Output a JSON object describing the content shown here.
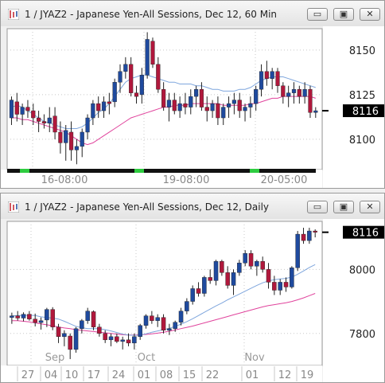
{
  "windows": [
    {
      "title": "1 / JYAZ2 - Japanese Yen-All Sessions, Dec 12, 60 Min",
      "buttons": {
        "minimize": "▭",
        "restore": "▣",
        "close": "✕"
      },
      "price_label": "8116",
      "colors": {
        "up": "#1f4a9e",
        "down": "#b0183c",
        "ma_short": "#7fa6dd",
        "ma_long": "#e0439c",
        "session_bar": "#111111",
        "session_mark": "#2ecc40"
      }
    },
    {
      "title": "1 / JYAZ2 - Japanese Yen-All Sessions, Dec 12, Daily",
      "buttons": {
        "minimize": "▭",
        "restore": "▣",
        "close": "✕"
      },
      "price_label": "8116",
      "colors": {
        "up": "#1f4a9e",
        "down": "#b0183c",
        "ma_short": "#7fa6dd",
        "ma_long": "#e0439c"
      }
    }
  ],
  "chart_data": [
    {
      "type": "candlestick",
      "interval": "60 Min",
      "y_ticks": [
        8100,
        8125,
        8150
      ],
      "ylim": [
        8083,
        8162
      ],
      "x_labels": [
        "16-08:00",
        "19-08:00",
        "20-05:00"
      ],
      "last_price": 8116,
      "candles": [
        {
          "o": 8112,
          "h": 8124,
          "l": 8108,
          "c": 8122
        },
        {
          "o": 8121,
          "h": 8126,
          "l": 8110,
          "c": 8114
        },
        {
          "o": 8114,
          "h": 8120,
          "l": 8108,
          "c": 8118
        },
        {
          "o": 8118,
          "h": 8122,
          "l": 8112,
          "c": 8116
        },
        {
          "o": 8116,
          "h": 8120,
          "l": 8108,
          "c": 8112
        },
        {
          "o": 8112,
          "h": 8116,
          "l": 8104,
          "c": 8110
        },
        {
          "o": 8110,
          "h": 8114,
          "l": 8106,
          "c": 8109
        },
        {
          "o": 8109,
          "h": 8118,
          "l": 8104,
          "c": 8112
        },
        {
          "o": 8113,
          "h": 8118,
          "l": 8100,
          "c": 8104
        },
        {
          "o": 8104,
          "h": 8110,
          "l": 8092,
          "c": 8098
        },
        {
          "o": 8098,
          "h": 8108,
          "l": 8088,
          "c": 8105
        },
        {
          "o": 8104,
          "h": 8110,
          "l": 8088,
          "c": 8094
        },
        {
          "o": 8094,
          "h": 8100,
          "l": 8086,
          "c": 8096
        },
        {
          "o": 8096,
          "h": 8106,
          "l": 8090,
          "c": 8104
        },
        {
          "o": 8104,
          "h": 8114,
          "l": 8100,
          "c": 8112
        },
        {
          "o": 8112,
          "h": 8122,
          "l": 8108,
          "c": 8120
        },
        {
          "o": 8120,
          "h": 8124,
          "l": 8112,
          "c": 8116
        },
        {
          "o": 8116,
          "h": 8124,
          "l": 8112,
          "c": 8121
        },
        {
          "o": 8121,
          "h": 8126,
          "l": 8114,
          "c": 8120
        },
        {
          "o": 8121,
          "h": 8134,
          "l": 8118,
          "c": 8132
        },
        {
          "o": 8132,
          "h": 8142,
          "l": 8126,
          "c": 8138
        },
        {
          "o": 8138,
          "h": 8146,
          "l": 8134,
          "c": 8142
        },
        {
          "o": 8142,
          "h": 8146,
          "l": 8124,
          "c": 8126
        },
        {
          "o": 8126,
          "h": 8130,
          "l": 8120,
          "c": 8124
        },
        {
          "o": 8125,
          "h": 8140,
          "l": 8120,
          "c": 8136
        },
        {
          "o": 8136,
          "h": 8160,
          "l": 8134,
          "c": 8156
        },
        {
          "o": 8155,
          "h": 8157,
          "l": 8140,
          "c": 8142
        },
        {
          "o": 8142,
          "h": 8146,
          "l": 8126,
          "c": 8128
        },
        {
          "o": 8128,
          "h": 8132,
          "l": 8116,
          "c": 8118
        },
        {
          "o": 8118,
          "h": 8126,
          "l": 8110,
          "c": 8122
        },
        {
          "o": 8122,
          "h": 8126,
          "l": 8114,
          "c": 8116
        },
        {
          "o": 8116,
          "h": 8124,
          "l": 8112,
          "c": 8120
        },
        {
          "o": 8120,
          "h": 8126,
          "l": 8114,
          "c": 8118
        },
        {
          "o": 8118,
          "h": 8128,
          "l": 8114,
          "c": 8124
        },
        {
          "o": 8124,
          "h": 8130,
          "l": 8118,
          "c": 8128
        },
        {
          "o": 8128,
          "h": 8132,
          "l": 8116,
          "c": 8118
        },
        {
          "o": 8118,
          "h": 8124,
          "l": 8110,
          "c": 8116
        },
        {
          "o": 8116,
          "h": 8122,
          "l": 8112,
          "c": 8120
        },
        {
          "o": 8120,
          "h": 8124,
          "l": 8108,
          "c": 8112
        },
        {
          "o": 8112,
          "h": 8120,
          "l": 8108,
          "c": 8118
        },
        {
          "o": 8118,
          "h": 8124,
          "l": 8112,
          "c": 8120
        },
        {
          "o": 8120,
          "h": 8126,
          "l": 8114,
          "c": 8122
        },
        {
          "o": 8122,
          "h": 8126,
          "l": 8112,
          "c": 8116
        },
        {
          "o": 8116,
          "h": 8120,
          "l": 8110,
          "c": 8118
        },
        {
          "o": 8118,
          "h": 8124,
          "l": 8112,
          "c": 8120
        },
        {
          "o": 8120,
          "h": 8130,
          "l": 8116,
          "c": 8128
        },
        {
          "o": 8128,
          "h": 8142,
          "l": 8124,
          "c": 8138
        },
        {
          "o": 8138,
          "h": 8144,
          "l": 8130,
          "c": 8134
        },
        {
          "o": 8134,
          "h": 8140,
          "l": 8128,
          "c": 8138
        },
        {
          "o": 8138,
          "h": 8140,
          "l": 8126,
          "c": 8130
        },
        {
          "o": 8130,
          "h": 8132,
          "l": 8120,
          "c": 8124
        },
        {
          "o": 8124,
          "h": 8130,
          "l": 8118,
          "c": 8126
        },
        {
          "o": 8126,
          "h": 8132,
          "l": 8120,
          "c": 8128
        },
        {
          "o": 8128,
          "h": 8130,
          "l": 8120,
          "c": 8124
        },
        {
          "o": 8124,
          "h": 8132,
          "l": 8120,
          "c": 8128
        },
        {
          "o": 8128,
          "h": 8130,
          "l": 8112,
          "c": 8115
        },
        {
          "o": 8115,
          "h": 8118,
          "l": 8112,
          "c": 8116
        }
      ],
      "ma_short": [
        8118,
        8119,
        8118,
        8116,
        8114,
        8112,
        8110,
        8109,
        8108,
        8107,
        8106,
        8106,
        8106,
        8107,
        8109,
        8112,
        8115,
        8117,
        8120,
        8124,
        8128,
        8132,
        8134,
        8135,
        8136,
        8136,
        8135,
        8134,
        8133,
        8132,
        8132,
        8131,
        8131,
        8131,
        8130,
        8130,
        8129,
        8128,
        8128,
        8127,
        8127,
        8127,
        8128,
        8128,
        8129,
        8131,
        8133,
        8134,
        8135,
        8135,
        8135,
        8134,
        8133,
        8132,
        8131,
        8130,
        8129
      ],
      "ma_long": [
        8112,
        8112,
        8111,
        8111,
        8110,
        8109,
        8108,
        8107,
        8106,
        8105,
        8104,
        8102,
        8100,
        8098,
        8097,
        8098,
        8100,
        8102,
        8104,
        8106,
        8108,
        8110,
        8112,
        8113,
        8114,
        8115,
        8116,
        8117,
        8118,
        8118,
        8119,
        8119,
        8119,
        8120,
        8120,
        8120,
        8120,
        8120,
        8120,
        8119,
        8119,
        8119,
        8119,
        8119,
        8120,
        8120,
        8121,
        8122,
        8123,
        8123,
        8124,
        8124,
        8124,
        8124,
        8124,
        8124,
        8123
      ]
    },
    {
      "type": "candlestick",
      "interval": "Daily",
      "y_ticks": [
        7800,
        8000
      ],
      "ylim": [
        7700,
        8150
      ],
      "x_labels": [
        "27",
        "04",
        "10",
        "17",
        "24",
        "01",
        "08",
        "15",
        "22",
        "01",
        "12",
        "19"
      ],
      "month_labels": [
        "Sep",
        "Oct",
        "Nov"
      ],
      "last_price": 8116,
      "candles": [
        {
          "o": 7850,
          "h": 7865,
          "l": 7830,
          "c": 7855
        },
        {
          "o": 7855,
          "h": 7870,
          "l": 7840,
          "c": 7848
        },
        {
          "o": 7848,
          "h": 7866,
          "l": 7838,
          "c": 7860
        },
        {
          "o": 7860,
          "h": 7870,
          "l": 7840,
          "c": 7845
        },
        {
          "o": 7845,
          "h": 7862,
          "l": 7822,
          "c": 7834
        },
        {
          "o": 7834,
          "h": 7850,
          "l": 7812,
          "c": 7840
        },
        {
          "o": 7842,
          "h": 7880,
          "l": 7820,
          "c": 7875
        },
        {
          "o": 7875,
          "h": 7882,
          "l": 7810,
          "c": 7820
        },
        {
          "o": 7820,
          "h": 7830,
          "l": 7770,
          "c": 7790
        },
        {
          "o": 7790,
          "h": 7810,
          "l": 7760,
          "c": 7800
        },
        {
          "o": 7792,
          "h": 7800,
          "l": 7720,
          "c": 7750
        },
        {
          "o": 7750,
          "h": 7820,
          "l": 7740,
          "c": 7815
        },
        {
          "o": 7815,
          "h": 7845,
          "l": 7800,
          "c": 7840
        },
        {
          "o": 7840,
          "h": 7880,
          "l": 7830,
          "c": 7870
        },
        {
          "o": 7868,
          "h": 7872,
          "l": 7810,
          "c": 7820
        },
        {
          "o": 7820,
          "h": 7830,
          "l": 7790,
          "c": 7800
        },
        {
          "o": 7800,
          "h": 7810,
          "l": 7770,
          "c": 7780
        },
        {
          "o": 7780,
          "h": 7800,
          "l": 7760,
          "c": 7790
        },
        {
          "o": 7790,
          "h": 7800,
          "l": 7770,
          "c": 7775
        },
        {
          "o": 7775,
          "h": 7790,
          "l": 7750,
          "c": 7780
        },
        {
          "o": 7780,
          "h": 7800,
          "l": 7760,
          "c": 7770
        },
        {
          "o": 7770,
          "h": 7800,
          "l": 7750,
          "c": 7790
        },
        {
          "o": 7790,
          "h": 7830,
          "l": 7780,
          "c": 7825
        },
        {
          "o": 7825,
          "h": 7860,
          "l": 7815,
          "c": 7855
        },
        {
          "o": 7855,
          "h": 7870,
          "l": 7830,
          "c": 7840
        },
        {
          "o": 7840,
          "h": 7860,
          "l": 7820,
          "c": 7850
        },
        {
          "o": 7850,
          "h": 7860,
          "l": 7800,
          "c": 7810
        },
        {
          "o": 7810,
          "h": 7830,
          "l": 7795,
          "c": 7815
        },
        {
          "o": 7815,
          "h": 7840,
          "l": 7805,
          "c": 7835
        },
        {
          "o": 7835,
          "h": 7880,
          "l": 7825,
          "c": 7870
        },
        {
          "o": 7870,
          "h": 7910,
          "l": 7860,
          "c": 7900
        },
        {
          "o": 7900,
          "h": 7950,
          "l": 7890,
          "c": 7940
        },
        {
          "o": 7940,
          "h": 7960,
          "l": 7915,
          "c": 7925
        },
        {
          "o": 7925,
          "h": 7980,
          "l": 7915,
          "c": 7975
        },
        {
          "o": 7975,
          "h": 8000,
          "l": 7955,
          "c": 7965
        },
        {
          "o": 7965,
          "h": 8030,
          "l": 7950,
          "c": 8025
        },
        {
          "o": 8025,
          "h": 8030,
          "l": 7980,
          "c": 7990
        },
        {
          "o": 7990,
          "h": 8010,
          "l": 7940,
          "c": 7950
        },
        {
          "o": 7950,
          "h": 8000,
          "l": 7920,
          "c": 7990
        },
        {
          "o": 7990,
          "h": 8030,
          "l": 7980,
          "c": 8020
        },
        {
          "o": 8020,
          "h": 8060,
          "l": 8010,
          "c": 8050
        },
        {
          "o": 8050,
          "h": 8060,
          "l": 8000,
          "c": 8010
        },
        {
          "o": 8010,
          "h": 8030,
          "l": 7980,
          "c": 8025
        },
        {
          "o": 8025,
          "h": 8040,
          "l": 7990,
          "c": 8000
        },
        {
          "o": 8000,
          "h": 8020,
          "l": 7940,
          "c": 7960
        },
        {
          "o": 7960,
          "h": 7980,
          "l": 7920,
          "c": 7935
        },
        {
          "o": 7935,
          "h": 7970,
          "l": 7920,
          "c": 7960
        },
        {
          "o": 7960,
          "h": 7975,
          "l": 7930,
          "c": 7945
        },
        {
          "o": 7945,
          "h": 8010,
          "l": 7940,
          "c": 8005
        },
        {
          "o": 8005,
          "h": 8120,
          "l": 7995,
          "c": 8110
        },
        {
          "o": 8110,
          "h": 8130,
          "l": 8080,
          "c": 8090
        },
        {
          "o": 8090,
          "h": 8130,
          "l": 8080,
          "c": 8120
        },
        {
          "o": 8120,
          "h": 8125,
          "l": 8100,
          "c": 8116
        }
      ],
      "ma_short": [
        7855,
        7856,
        7856,
        7857,
        7856,
        7852,
        7850,
        7848,
        7845,
        7838,
        7830,
        7822,
        7818,
        7815,
        7815,
        7815,
        7812,
        7808,
        7803,
        7798,
        7795,
        7794,
        7795,
        7799,
        7804,
        7808,
        7812,
        7816,
        7822,
        7829,
        7837,
        7846,
        7856,
        7866,
        7876,
        7886,
        7895,
        7905,
        7914,
        7923,
        7932,
        7941,
        7950,
        7958,
        7964,
        7968,
        7970,
        7972,
        7976,
        7985,
        7995,
        8006,
        8015
      ],
      "ma_long": [
        7840,
        7840,
        7838,
        7836,
        7833,
        7830,
        7827,
        7824,
        7820,
        7817,
        7815,
        7812,
        7810,
        7808,
        7806,
        7804,
        7802,
        7800,
        7798,
        7796,
        7795,
        7795,
        7796,
        7797,
        7799,
        7801,
        7804,
        7807,
        7811,
        7815,
        7819,
        7823,
        7828,
        7833,
        7838,
        7843,
        7848,
        7853,
        7858,
        7863,
        7868,
        7873,
        7878,
        7883,
        7887,
        7890,
        7893,
        7896,
        7900,
        7905,
        7911,
        7918,
        7925
      ]
    }
  ]
}
